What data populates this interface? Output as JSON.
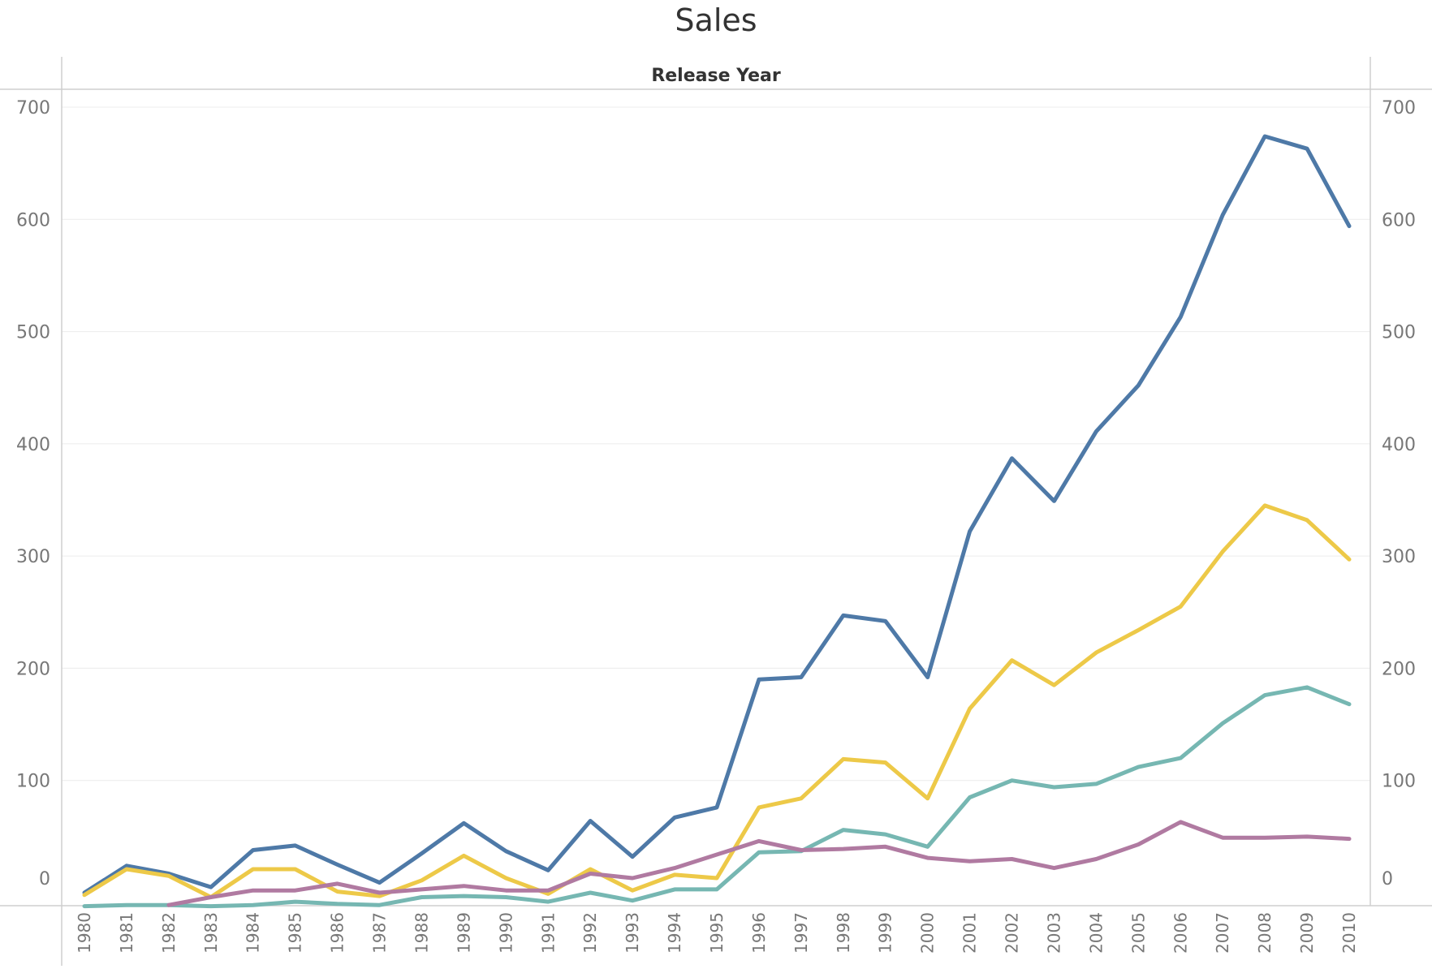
{
  "chart_data": {
    "type": "line",
    "title": "Sales",
    "header": "Release Year",
    "xlabel": "",
    "ylabel": "",
    "ylim": [
      -12,
      700
    ],
    "y_ticks": [
      0,
      100,
      200,
      300,
      400,
      500,
      600,
      700
    ],
    "dual_axis": true,
    "grid": true,
    "x": [
      "1980",
      "1981",
      "1982",
      "1983",
      "1984",
      "1985",
      "1986",
      "1987",
      "1988",
      "1989",
      "1990",
      "1991",
      "1992",
      "1993",
      "1994",
      "1995",
      "1996",
      "1997",
      "1998",
      "1999",
      "2000",
      "2001",
      "2002",
      "2003",
      "2004",
      "2005",
      "2006",
      "2007",
      "2008",
      "2009",
      "2010"
    ],
    "series": [
      {
        "color": "#4e79a7",
        "values": [
          0,
          24,
          17,
          5,
          38,
          42,
          25,
          9,
          35,
          62,
          37,
          20,
          64,
          32,
          67,
          76,
          190,
          192,
          247,
          242,
          192,
          322,
          387,
          349,
          411,
          452,
          513,
          604,
          674,
          663,
          594
        ]
      },
      {
        "color": "#edc948",
        "values": [
          -2,
          21,
          15,
          -4,
          21,
          21,
          1,
          -3,
          11,
          33,
          13,
          -1,
          21,
          2,
          16,
          13,
          76,
          84,
          119,
          116,
          84,
          164,
          207,
          185,
          214,
          234,
          255,
          304,
          345,
          332,
          297
        ]
      },
      {
        "color": "#76b7b2",
        "values": [
          -12,
          -11,
          -11,
          -12,
          -11,
          -8,
          -10,
          -11,
          -4,
          -3,
          -4,
          -8,
          0,
          -7,
          3,
          3,
          36,
          37,
          56,
          52,
          41,
          85,
          100,
          94,
          97,
          112,
          120,
          151,
          176,
          183,
          168
        ]
      },
      {
        "color": "#b07aa1",
        "values": [
          null,
          null,
          -11,
          -4,
          2,
          2,
          8,
          0,
          3,
          6,
          2,
          2,
          17,
          13,
          22,
          34,
          46,
          38,
          39,
          41,
          31,
          28,
          30,
          22,
          30,
          43,
          63,
          49,
          49,
          50,
          48
        ]
      }
    ]
  }
}
